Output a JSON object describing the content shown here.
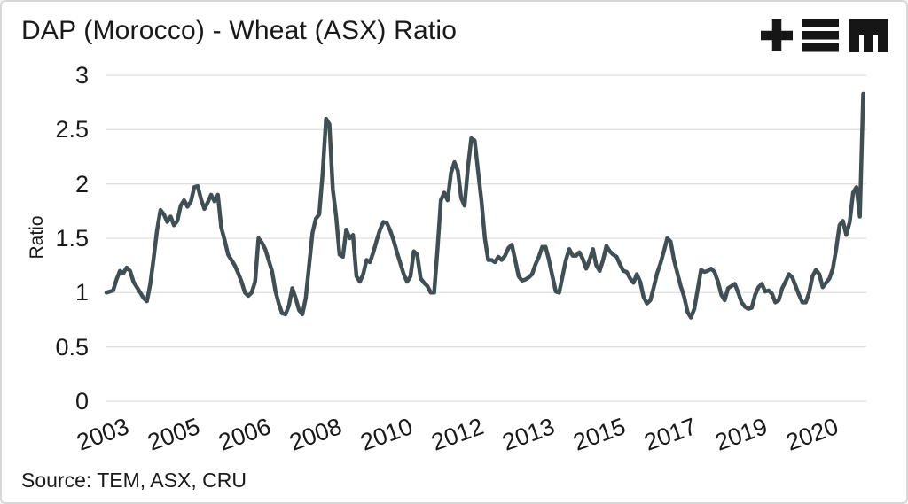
{
  "title": "DAP (Morocco) - Wheat (ASX) Ratio",
  "source": "Source: TEM, ASX, CRU",
  "logo": {
    "name": "TEM logo",
    "glyphs": [
      "plus",
      "triple-bar",
      "letter-m"
    ],
    "color": "#161616"
  },
  "colors": {
    "line": "#3f4f54",
    "grid": "#e1e1e1",
    "text": "#191919",
    "background": "#ffffff"
  },
  "chart_data": {
    "type": "line",
    "title": "DAP (Morocco) - Wheat (ASX) Ratio",
    "xlabel": "",
    "ylabel": "Ratio",
    "ylim": [
      0,
      3
    ],
    "yticks": [
      0,
      0.5,
      1,
      1.5,
      2,
      2.5,
      3
    ],
    "ytick_labels": [
      "0",
      "0.5",
      "1",
      "1.5",
      "2",
      "2.5",
      "3"
    ],
    "grid": true,
    "legend_position": "none",
    "frequency": "monthly",
    "x_start": "2003-01",
    "x_end": "2021-09",
    "xtick_labels": [
      "2003",
      "2005",
      "2006",
      "2008",
      "2010",
      "2012",
      "2013",
      "2015",
      "2017",
      "2019",
      "2020"
    ],
    "xtick_indices": [
      5,
      26,
      47,
      68,
      89,
      110,
      131,
      152,
      173,
      194,
      215
    ],
    "values": [
      1.0,
      1.01,
      1.02,
      1.12,
      1.2,
      1.18,
      1.23,
      1.2,
      1.1,
      1.05,
      1.0,
      0.95,
      0.92,
      1.08,
      1.32,
      1.58,
      1.76,
      1.72,
      1.65,
      1.7,
      1.62,
      1.66,
      1.8,
      1.85,
      1.79,
      1.84,
      1.97,
      1.98,
      1.86,
      1.77,
      1.83,
      1.9,
      1.84,
      1.9,
      1.6,
      1.48,
      1.35,
      1.3,
      1.25,
      1.18,
      1.1,
      1.0,
      0.97,
      1.0,
      1.1,
      1.5,
      1.46,
      1.4,
      1.3,
      1.2,
      1.02,
      0.9,
      0.81,
      0.8,
      0.88,
      1.04,
      0.95,
      0.84,
      0.8,
      0.95,
      1.25,
      1.55,
      1.68,
      1.72,
      2.1,
      2.6,
      2.55,
      1.95,
      1.7,
      1.35,
      1.33,
      1.58,
      1.5,
      1.53,
      1.15,
      1.1,
      1.17,
      1.3,
      1.28,
      1.37,
      1.48,
      1.58,
      1.65,
      1.64,
      1.57,
      1.48,
      1.37,
      1.27,
      1.17,
      1.1,
      1.15,
      1.38,
      1.35,
      1.13,
      1.09,
      1.06,
      1.0,
      1.0,
      1.4,
      1.85,
      1.92,
      1.85,
      2.1,
      2.2,
      2.12,
      1.87,
      1.8,
      2.15,
      2.42,
      2.4,
      2.12,
      1.85,
      1.5,
      1.3,
      1.3,
      1.28,
      1.33,
      1.3,
      1.34,
      1.41,
      1.44,
      1.3,
      1.15,
      1.11,
      1.12,
      1.14,
      1.17,
      1.26,
      1.33,
      1.42,
      1.42,
      1.3,
      1.15,
      1.01,
      1.0,
      1.15,
      1.3,
      1.4,
      1.34,
      1.34,
      1.37,
      1.31,
      1.22,
      1.3,
      1.4,
      1.25,
      1.2,
      1.3,
      1.43,
      1.38,
      1.35,
      1.33,
      1.26,
      1.2,
      1.19,
      1.13,
      1.09,
      1.17,
      1.1,
      0.96,
      0.9,
      0.93,
      1.05,
      1.18,
      1.27,
      1.38,
      1.5,
      1.47,
      1.3,
      1.18,
      1.06,
      0.96,
      0.82,
      0.77,
      0.85,
      1.03,
      1.21,
      1.19,
      1.2,
      1.22,
      1.19,
      1.1,
      0.98,
      0.93,
      1.04,
      1.06,
      1.08,
      1.0,
      0.91,
      0.87,
      0.85,
      0.86,
      0.98,
      1.05,
      1.08,
      1.01,
      1.02,
      0.99,
      0.91,
      0.93,
      1.04,
      1.1,
      1.17,
      1.14,
      1.06,
      0.98,
      0.91,
      0.91,
      1.0,
      1.15,
      1.21,
      1.17,
      1.05,
      1.09,
      1.13,
      1.22,
      1.4,
      1.62,
      1.66,
      1.53,
      1.65,
      1.92,
      1.97,
      1.7,
      2.83
    ]
  }
}
